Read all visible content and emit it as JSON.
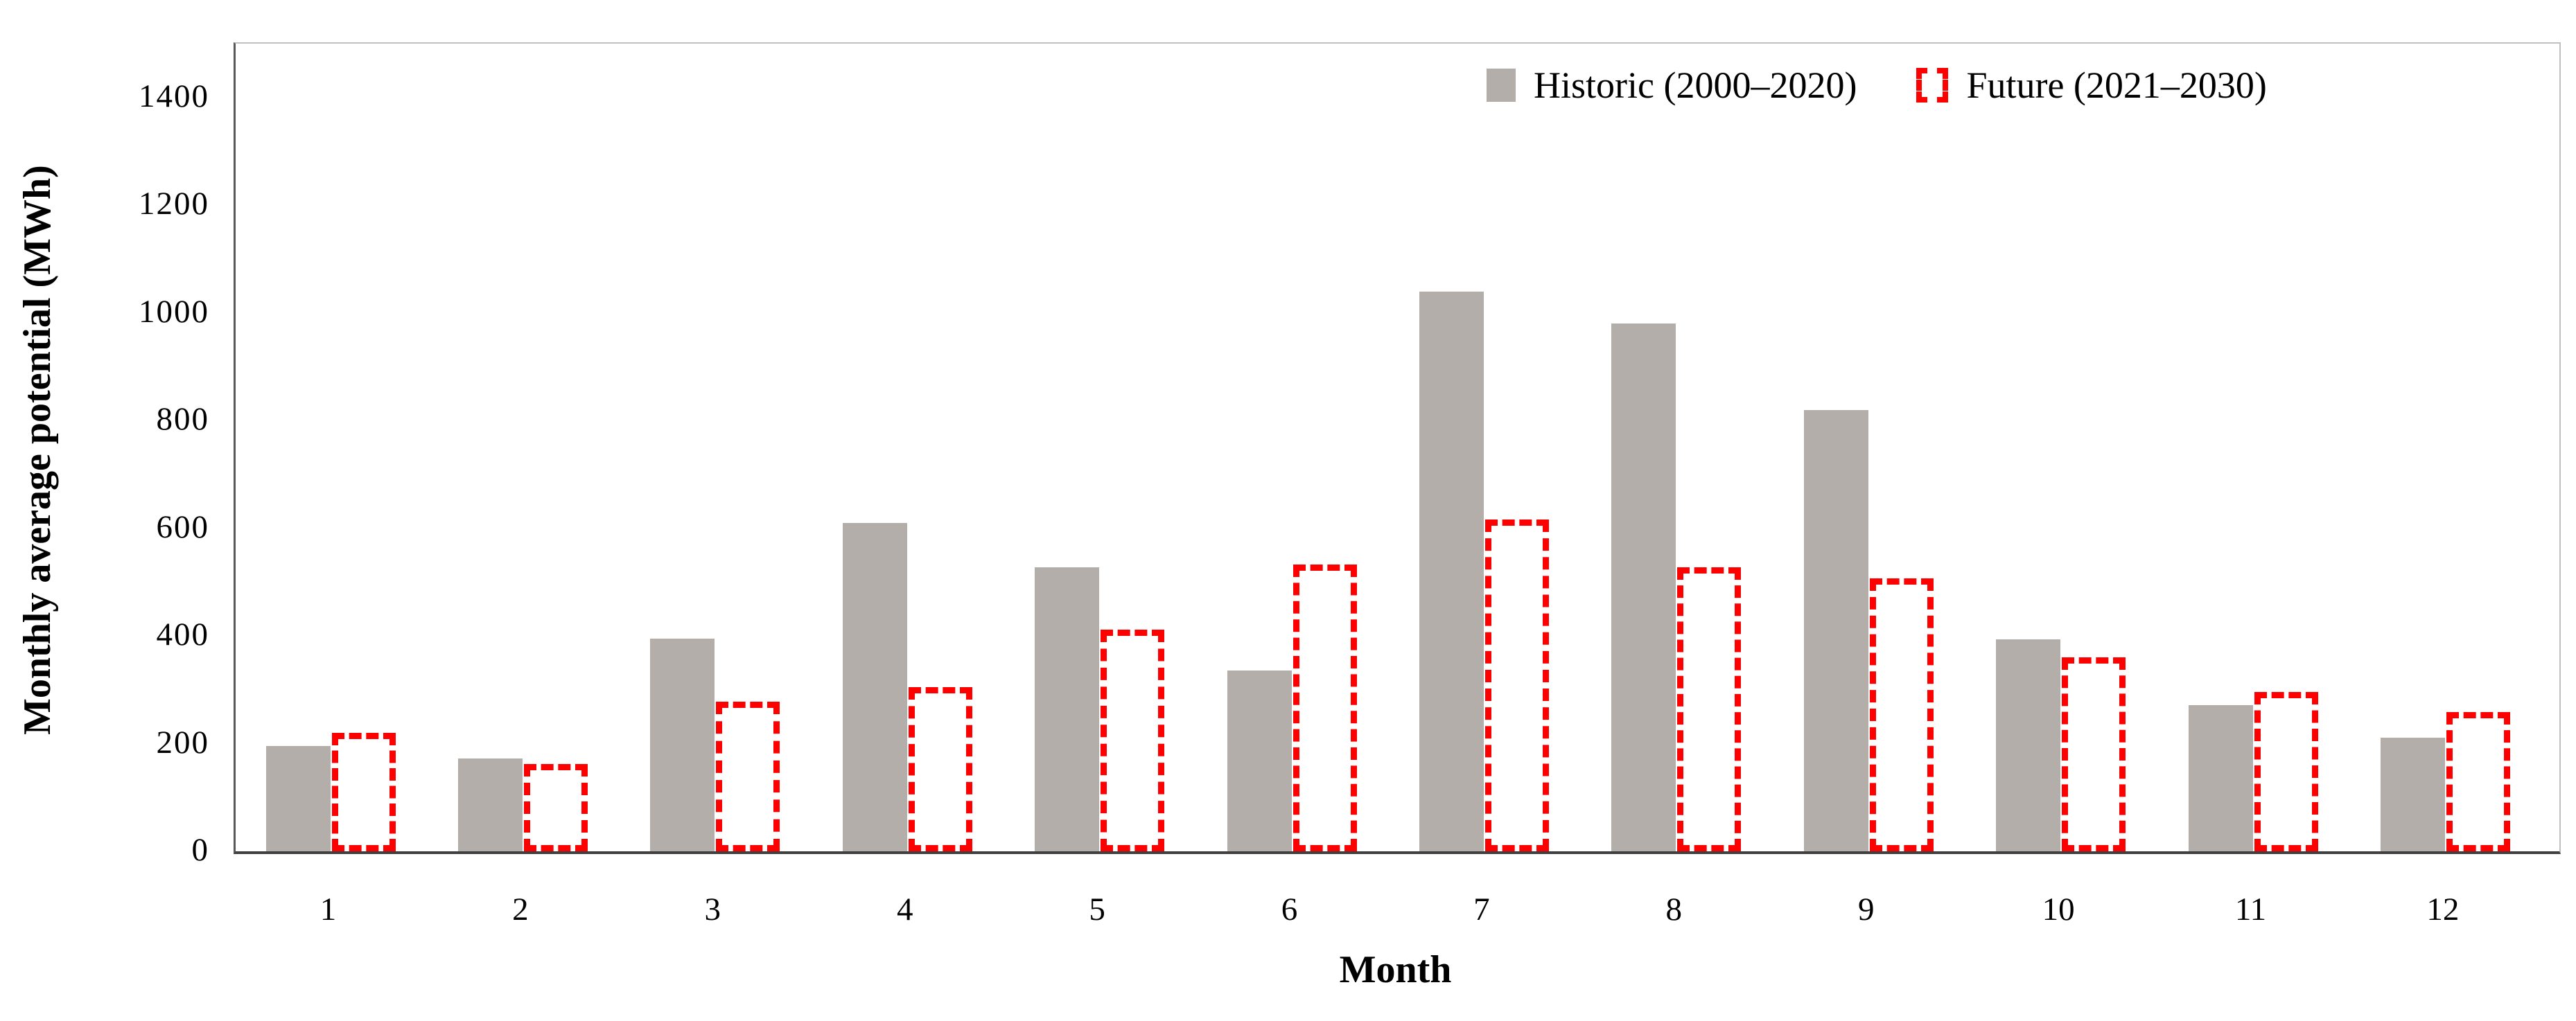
{
  "chart_data": {
    "type": "bar",
    "title": "",
    "xlabel": "Month",
    "ylabel": "Monthly average potential (MWh)",
    "categories": [
      "1",
      "2",
      "3",
      "4",
      "5",
      "6",
      "7",
      "8",
      "9",
      "10",
      "11",
      "12"
    ],
    "series": [
      {
        "name": "Historic (2000–2020)",
        "style": "solid-gray-fill",
        "color": "#b3aeaa",
        "values": [
          195,
          172,
          395,
          610,
          528,
          336,
          1040,
          980,
          820,
          394,
          271,
          211
        ]
      },
      {
        "name": "Future (2021–2030)",
        "style": "red-dotted-outline",
        "color": "#ff0000",
        "values": [
          220,
          162,
          278,
          305,
          412,
          532,
          616,
          527,
          507,
          360,
          296,
          258
        ]
      }
    ],
    "ylim": [
      0,
      1500
    ],
    "yticks": [
      0,
      200,
      400,
      600,
      800,
      1000,
      1200,
      1400
    ],
    "grid": false,
    "legend_position": "top-right"
  },
  "legend": {
    "historic_label": "Historic (2000–2020)",
    "future_label": "Future (2021–2030)"
  },
  "axes": {
    "y_title": "Monthly average potential (MWh)",
    "x_title": "Month"
  },
  "colors": {
    "historic_fill": "#b3aeaa",
    "future_outline": "#ff0000",
    "axis_line": "#404040",
    "plot_border": "#bfbfbf"
  }
}
